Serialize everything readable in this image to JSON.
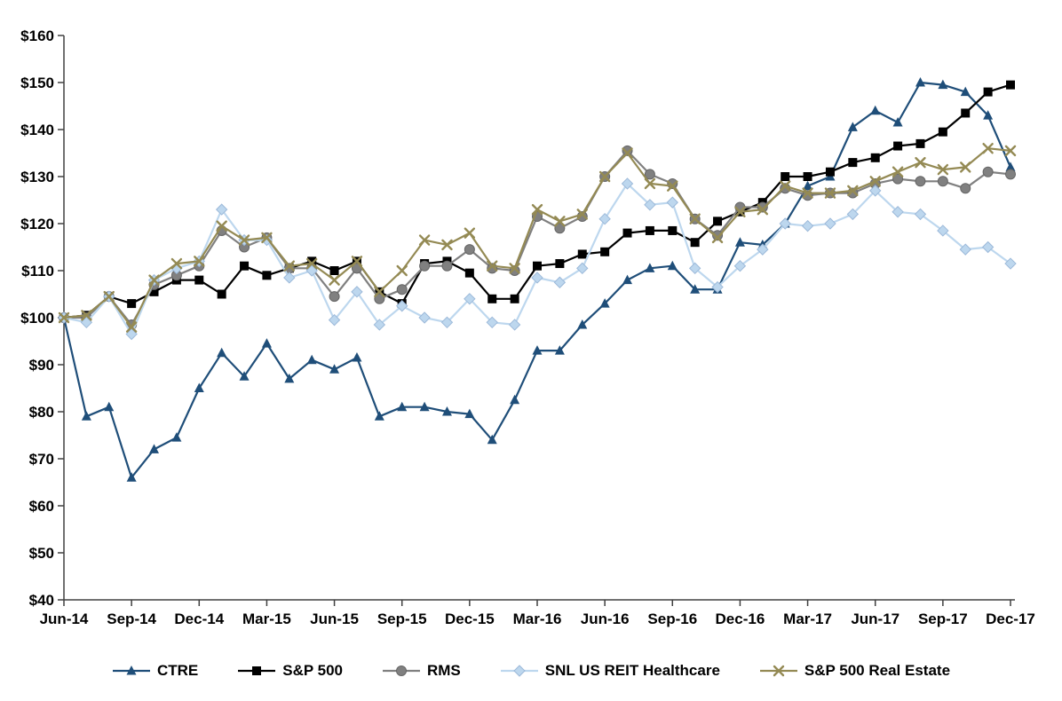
{
  "chart_data": {
    "type": "line",
    "title": "",
    "xlabel": "",
    "ylabel": "",
    "grid": false,
    "legend_position": "bottom",
    "ylim": [
      40,
      160
    ],
    "y_tick_step": 10,
    "y_tick_labels": [
      "$40",
      "$50",
      "$60",
      "$70",
      "$80",
      "$90",
      "$100",
      "$110",
      "$120",
      "$130",
      "$140",
      "$150",
      "$160"
    ],
    "x_tick_every": 3,
    "x_tick_labels": [
      "Jun-14",
      "Sep-14",
      "Dec-14",
      "Mar-15",
      "Jun-15",
      "Sep-15",
      "Dec-15",
      "Mar-16",
      "Jun-16",
      "Sep-16",
      "Dec-16",
      "Mar-17",
      "Jun-17",
      "Sep-17",
      "Dec-17"
    ],
    "x": [
      "Jun-14",
      "Jul-14",
      "Aug-14",
      "Sep-14",
      "Oct-14",
      "Nov-14",
      "Dec-14",
      "Jan-15",
      "Feb-15",
      "Mar-15",
      "Apr-15",
      "May-15",
      "Jun-15",
      "Jul-15",
      "Aug-15",
      "Sep-15",
      "Oct-15",
      "Nov-15",
      "Dec-15",
      "Jan-16",
      "Feb-16",
      "Mar-16",
      "Apr-16",
      "May-16",
      "Jun-16",
      "Jul-16",
      "Aug-16",
      "Sep-16",
      "Oct-16",
      "Nov-16",
      "Dec-16",
      "Jan-17",
      "Feb-17",
      "Mar-17",
      "Apr-17",
      "May-17",
      "Jun-17",
      "Jul-17",
      "Aug-17",
      "Sep-17",
      "Oct-17",
      "Nov-17",
      "Dec-17"
    ],
    "series": [
      {
        "id": "ctre",
        "name": "CTRE",
        "marker": "triangle",
        "color": "#1F4E79",
        "marker_fill": "#1F4E79",
        "marker_stroke": "none",
        "values": [
          100,
          79,
          81,
          66,
          72,
          74.5,
          85,
          92.5,
          87.5,
          94.5,
          87,
          91,
          89,
          91.5,
          79,
          81,
          81,
          80,
          79.5,
          74,
          82.5,
          93,
          93,
          98.5,
          103,
          108,
          110.5,
          111,
          106,
          106,
          116,
          115.5,
          120,
          128,
          130,
          140.5,
          144,
          141.5,
          150,
          149.5,
          148,
          143,
          132
        ]
      },
      {
        "id": "sp500",
        "name": "S&P 500",
        "marker": "square",
        "color": "#000000",
        "marker_fill": "#000000",
        "marker_stroke": "none",
        "values": [
          100,
          100.5,
          104.5,
          103,
          105.5,
          108,
          108,
          105,
          111,
          109,
          110.5,
          112,
          110,
          112,
          105.5,
          103,
          111.5,
          112,
          109.5,
          104,
          104,
          111,
          111.5,
          113.5,
          114,
          118,
          118.5,
          118.5,
          116,
          120.5,
          122.5,
          124.5,
          130,
          130,
          131,
          133,
          134,
          136.5,
          137,
          139.5,
          143.5,
          148,
          149.5
        ]
      },
      {
        "id": "rms",
        "name": "RMS",
        "marker": "circle",
        "color": "#808080",
        "marker_fill": "#808080",
        "marker_stroke": "#666666",
        "values": [
          100,
          100,
          104.5,
          98.5,
          107,
          109,
          111,
          118.5,
          115,
          117,
          110.5,
          110.5,
          104.5,
          110.5,
          104,
          106,
          111,
          111,
          114.5,
          110.5,
          110,
          121.5,
          119,
          121.5,
          130,
          135.5,
          130.5,
          128.5,
          121,
          117.5,
          123.5,
          123.5,
          127.5,
          126,
          126.5,
          126.5,
          128.5,
          129.5,
          129,
          129,
          127.5,
          131,
          130.5
        ]
      },
      {
        "id": "snl-us-reit-healthcare",
        "name": "SNL US REIT Healthcare",
        "marker": "diamond",
        "color": "#BDD7EE",
        "marker_fill": "#BDD7EE",
        "marker_stroke": "#9CB9D9",
        "values": [
          100,
          99,
          104.5,
          96.5,
          108,
          110.5,
          112,
          123,
          116.5,
          116.5,
          108.5,
          110,
          99.5,
          105.5,
          98.5,
          102.5,
          100,
          99,
          104,
          99,
          98.5,
          108.5,
          107.5,
          110.5,
          121,
          128.5,
          124,
          124.5,
          110.5,
          106.5,
          111,
          114.5,
          120,
          119.5,
          120,
          122,
          127,
          122.5,
          122,
          118.5,
          114.5,
          115,
          111.5
        ]
      },
      {
        "id": "sp500-real-estate",
        "name": "S&P 500 Real Estate",
        "marker": "x",
        "color": "#948A54",
        "marker_fill": "#948A54",
        "marker_stroke": "none",
        "values": [
          100,
          100.5,
          104.5,
          98,
          108,
          111.5,
          112,
          119.5,
          116.5,
          117,
          111,
          111.5,
          108,
          112,
          105.5,
          110,
          116.5,
          115.5,
          118,
          111,
          110.5,
          123,
          120.5,
          122,
          130,
          135,
          128.5,
          128,
          121,
          117,
          122.5,
          123,
          128,
          126.5,
          126.5,
          127,
          129,
          131,
          133,
          131.5,
          132,
          136,
          135.5
        ]
      }
    ],
    "axis_color": "#404040",
    "text_color": "#000000"
  }
}
